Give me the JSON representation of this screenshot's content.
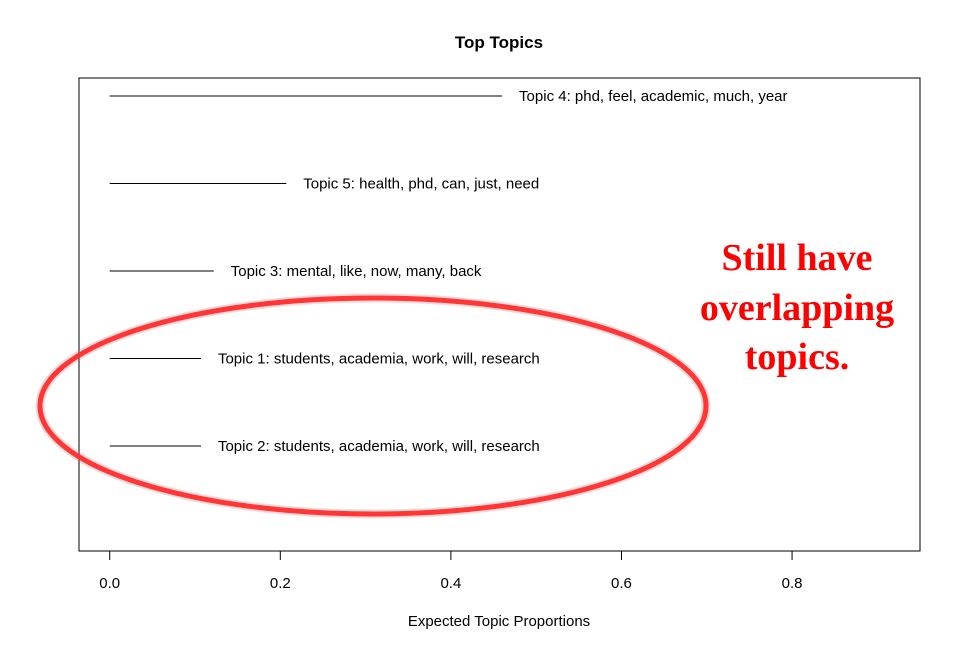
{
  "chart_data": {
    "type": "bar",
    "orientation": "horizontal",
    "title": "Top Topics",
    "xlabel": "Expected Topic Proportions",
    "ylabel": "",
    "xlim": [
      -0.036,
      0.95
    ],
    "xticks": [
      0.0,
      0.2,
      0.4,
      0.6,
      0.8
    ],
    "xtick_labels": [
      "0.0",
      "0.2",
      "0.4",
      "0.6",
      "0.8"
    ],
    "categories": [
      "Topic 4: phd, feel, academic, much, year",
      "Topic 5: health, phd, can, just, need",
      "Topic 3: mental, like, now, many, back",
      "Topic 1: students, academia, work, will, research",
      "Topic 2: students, academia, work, will, research"
    ],
    "values": [
      0.46,
      0.207,
      0.122,
      0.107,
      0.107
    ],
    "grid": false,
    "annotation": {
      "lines": [
        "Still have",
        "overlapping",
        "topics."
      ],
      "color": "#ff0000",
      "ellipse_color": "#ff0000",
      "encircles": [
        "Topic 1: students, academia, work, will, research",
        "Topic 2: students, academia, work, will, research"
      ]
    }
  }
}
